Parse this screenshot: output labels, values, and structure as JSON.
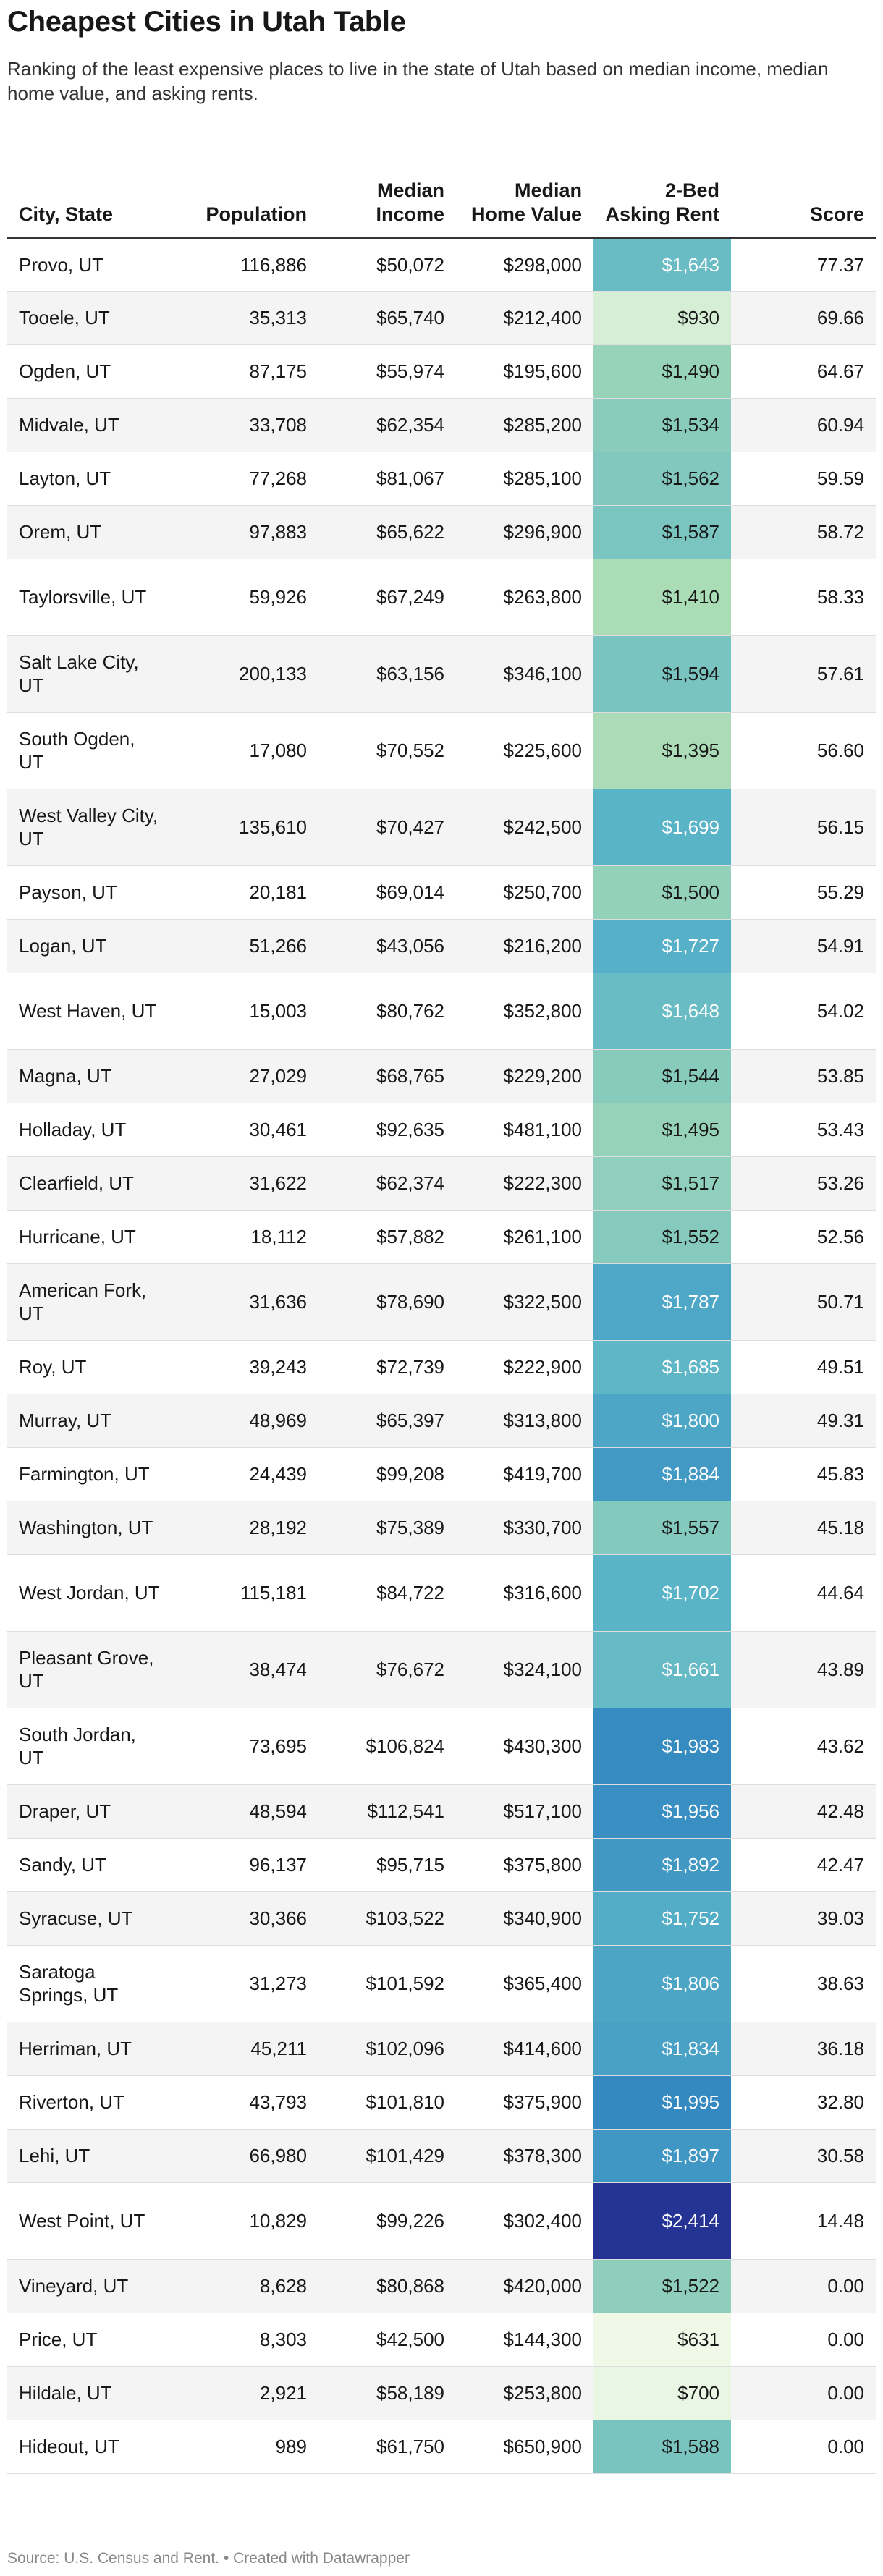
{
  "title": "Cheapest Cities in Utah Table",
  "description": "Ranking of the least expensive places to live in the state of Utah based on median income, median home value, and asking rents.",
  "footer": "Source: U.S. Census and Rent. • Created with Datawrapper",
  "chart_data": {
    "type": "table",
    "columns": [
      "City, State",
      "Population",
      "Median Income",
      "Median Home Value",
      "2-Bed Asking Rent",
      "Score"
    ],
    "heatmap_column": "2-Bed Asking Rent",
    "heatmap_colors": {
      "low": "#f0f9e8",
      "mid": "#41a7cb",
      "high": "#253494"
    },
    "rows": [
      [
        "Provo, UT",
        "116,886",
        "$50,072",
        "$298,000",
        "$1,643",
        "77.37"
      ],
      [
        "Tooele, UT",
        "35,313",
        "$65,740",
        "$212,400",
        "$930",
        "69.66"
      ],
      [
        "Ogden, UT",
        "87,175",
        "$55,974",
        "$195,600",
        "$1,490",
        "64.67"
      ],
      [
        "Midvale, UT",
        "33,708",
        "$62,354",
        "$285,200",
        "$1,534",
        "60.94"
      ],
      [
        "Layton, UT",
        "77,268",
        "$81,067",
        "$285,100",
        "$1,562",
        "59.59"
      ],
      [
        "Orem, UT",
        "97,883",
        "$65,622",
        "$296,900",
        "$1,587",
        "58.72"
      ],
      [
        "Taylorsville, UT",
        "59,926",
        "$67,249",
        "$263,800",
        "$1,410",
        "58.33"
      ],
      [
        "Salt Lake City, UT",
        "200,133",
        "$63,156",
        "$346,100",
        "$1,594",
        "57.61"
      ],
      [
        "South Ogden, UT",
        "17,080",
        "$70,552",
        "$225,600",
        "$1,395",
        "56.60"
      ],
      [
        "West Valley City, UT",
        "135,610",
        "$70,427",
        "$242,500",
        "$1,699",
        "56.15"
      ],
      [
        "Payson, UT",
        "20,181",
        "$69,014",
        "$250,700",
        "$1,500",
        "55.29"
      ],
      [
        "Logan, UT",
        "51,266",
        "$43,056",
        "$216,200",
        "$1,727",
        "54.91"
      ],
      [
        "West Haven, UT",
        "15,003",
        "$80,762",
        "$352,800",
        "$1,648",
        "54.02"
      ],
      [
        "Magna, UT",
        "27,029",
        "$68,765",
        "$229,200",
        "$1,544",
        "53.85"
      ],
      [
        "Holladay, UT",
        "30,461",
        "$92,635",
        "$481,100",
        "$1,495",
        "53.43"
      ],
      [
        "Clearfield, UT",
        "31,622",
        "$62,374",
        "$222,300",
        "$1,517",
        "53.26"
      ],
      [
        "Hurricane, UT",
        "18,112",
        "$57,882",
        "$261,100",
        "$1,552",
        "52.56"
      ],
      [
        "American Fork, UT",
        "31,636",
        "$78,690",
        "$322,500",
        "$1,787",
        "50.71"
      ],
      [
        "Roy, UT",
        "39,243",
        "$72,739",
        "$222,900",
        "$1,685",
        "49.51"
      ],
      [
        "Murray, UT",
        "48,969",
        "$65,397",
        "$313,800",
        "$1,800",
        "49.31"
      ],
      [
        "Farmington, UT",
        "24,439",
        "$99,208",
        "$419,700",
        "$1,884",
        "45.83"
      ],
      [
        "Washington, UT",
        "28,192",
        "$75,389",
        "$330,700",
        "$1,557",
        "45.18"
      ],
      [
        "West Jordan, UT",
        "115,181",
        "$84,722",
        "$316,600",
        "$1,702",
        "44.64"
      ],
      [
        "Pleasant Grove, UT",
        "38,474",
        "$76,672",
        "$324,100",
        "$1,661",
        "43.89"
      ],
      [
        "South Jordan, UT",
        "73,695",
        "$106,824",
        "$430,300",
        "$1,983",
        "43.62"
      ],
      [
        "Draper, UT",
        "48,594",
        "$112,541",
        "$517,100",
        "$1,956",
        "42.48"
      ],
      [
        "Sandy, UT",
        "96,137",
        "$95,715",
        "$375,800",
        "$1,892",
        "42.47"
      ],
      [
        "Syracuse, UT",
        "30,366",
        "$103,522",
        "$340,900",
        "$1,752",
        "39.03"
      ],
      [
        "Saratoga Springs, UT",
        "31,273",
        "$101,592",
        "$365,400",
        "$1,806",
        "38.63"
      ],
      [
        "Herriman, UT",
        "45,211",
        "$102,096",
        "$414,600",
        "$1,834",
        "36.18"
      ],
      [
        "Riverton, UT",
        "43,793",
        "$101,810",
        "$375,900",
        "$1,995",
        "32.80"
      ],
      [
        "Lehi, UT",
        "66,980",
        "$101,429",
        "$378,300",
        "$1,897",
        "30.58"
      ],
      [
        "West Point, UT",
        "10,829",
        "$99,226",
        "$302,400",
        "$2,414",
        "14.48"
      ],
      [
        "Vineyard, UT",
        "8,628",
        "$80,868",
        "$420,000",
        "$1,522",
        "0.00"
      ],
      [
        "Price, UT",
        "8,303",
        "$42,500",
        "$144,300",
        "$631",
        "0.00"
      ],
      [
        "Hildale, UT",
        "2,921",
        "$58,189",
        "$253,800",
        "$700",
        "0.00"
      ],
      [
        "Hideout, UT",
        "989",
        "$61,750",
        "$650,900",
        "$1,588",
        "0.00"
      ]
    ]
  }
}
